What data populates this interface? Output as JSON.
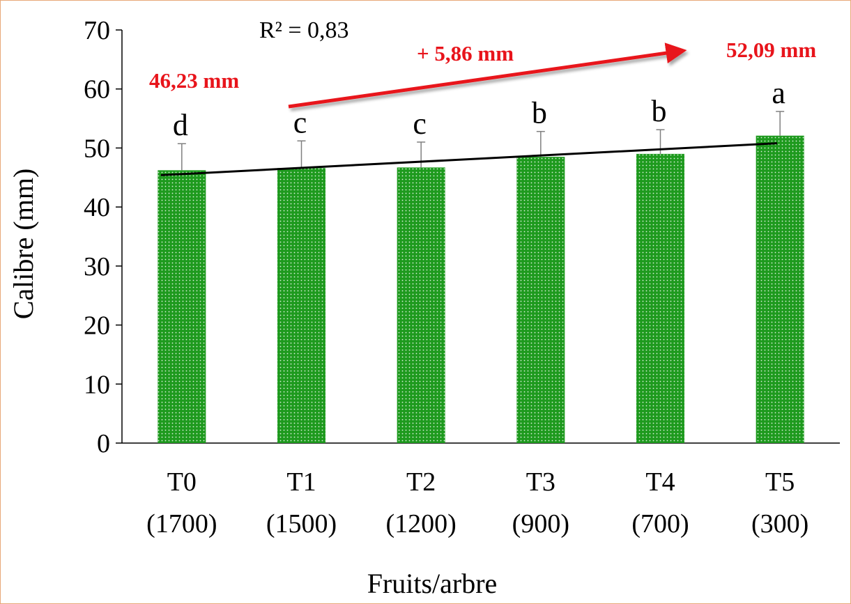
{
  "chart_data": {
    "type": "bar",
    "categories": [
      {
        "line1": "T0",
        "line2": "(1700)"
      },
      {
        "line1": "T1",
        "line2": "(1500)"
      },
      {
        "line1": "T2",
        "line2": "(1200)"
      },
      {
        "line1": "T3",
        "line2": "(900)"
      },
      {
        "line1": "T4",
        "line2": "(700)"
      },
      {
        "line1": "T5",
        "line2": "(300)"
      }
    ],
    "values": [
      46.23,
      46.6,
      46.7,
      48.5,
      49.0,
      52.09
    ],
    "error_bars_upper": [
      4.5,
      4.6,
      4.3,
      4.3,
      4.1,
      4.1
    ],
    "significance_letters": [
      "d",
      "c",
      "c",
      "b",
      "b",
      "a"
    ],
    "trendline": {
      "type": "linear",
      "start": 45.4,
      "end": 50.8,
      "r2_label": "R² = 0,83"
    },
    "xlabel": "Fruits/arbre",
    "ylabel": "Calibre (mm)",
    "ylim": [
      0,
      70
    ],
    "yticks": [
      0,
      10,
      20,
      30,
      40,
      50,
      60,
      70
    ],
    "grid": false,
    "annotations": {
      "start_value": "46,23 mm",
      "increase": "+ 5,86 mm",
      "end_value": "52,09 mm"
    },
    "colors": {
      "bar": "#1E9A1E",
      "bar_dots": "#ffffff",
      "annotation": "#E8141B",
      "trendline": "#000000",
      "axis": "#000000",
      "error_bar": "#7f7f7f",
      "frame_border": "#E8A878"
    }
  }
}
